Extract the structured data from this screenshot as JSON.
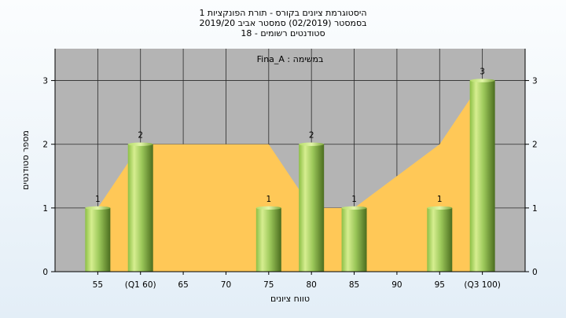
{
  "titles": {
    "line1": "היסטוגרמת ציונים בקורס - תורת הפונקציות 1",
    "line2": "בסמסטר  (02/2019)  סמסטר אביב 2019/20",
    "line3": "סטודנטים רשומים - 18"
  },
  "colors": {
    "plot_bg": "#b4b4b4",
    "area_fill": "#ffc857",
    "bar_light": "#d6ee90",
    "bar_mid": "#9cc85a",
    "bar_dark": "#4b6d1f"
  },
  "chart_data": {
    "type": "bar",
    "title": "Fina_A : במשימה",
    "xlabel": "טווח ציונים",
    "ylabel": "מספר סטודנטים",
    "ylim": [
      0,
      3.5
    ],
    "yticks": [
      0,
      1,
      2,
      3
    ],
    "categories": [
      "55",
      "(Q1 60)",
      "65",
      "70",
      "75",
      "80",
      "85",
      "90",
      "95",
      "(Q3 100)"
    ],
    "values": [
      1,
      2,
      0,
      0,
      1,
      2,
      1,
      0,
      1,
      3
    ],
    "area": {
      "type": "area",
      "values": [
        1,
        2,
        2,
        2,
        2,
        1,
        1,
        1.5,
        2,
        3
      ]
    },
    "grid": true,
    "legend": "none"
  }
}
